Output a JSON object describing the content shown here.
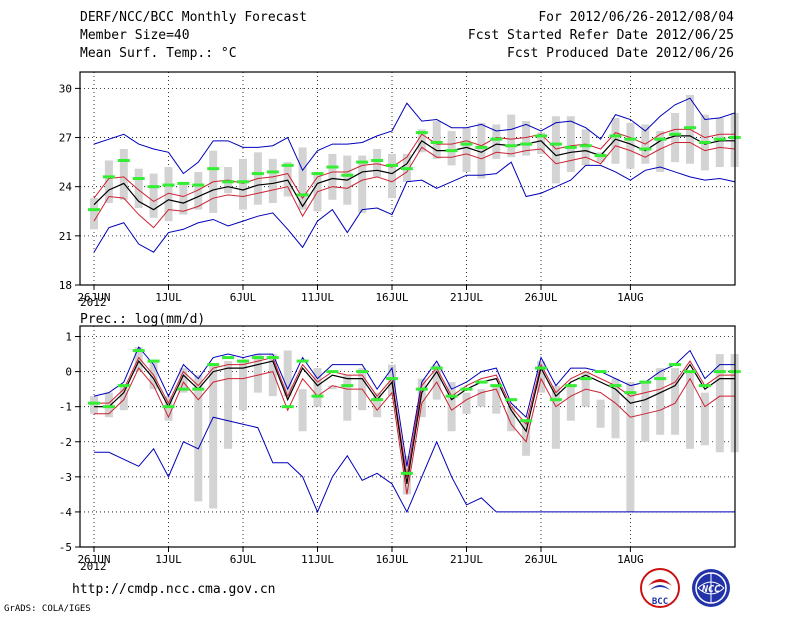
{
  "header": {
    "title": "DERF/NCC/BCC Monthly Forecast",
    "member_size": "Member Size=40",
    "variable1": "Mean Surf. Temp.: °C",
    "period": "For 2012/06/26-2012/08/04",
    "started": "Fcst Started Refer Date 2012/06/25",
    "produced": "Fcst Produced Date 2012/06/26"
  },
  "footer": {
    "url": "http://cmdp.ncc.cma.gov.cn",
    "credit": "GrADS: COLA/IGES",
    "logo1_text": "BCC",
    "logo2_text": "NCC"
  },
  "colors": {
    "spread": "#d3d3d3",
    "obs": "#33ee33",
    "mean": "#000000",
    "pm_sd": "#cc2233",
    "env": "#0000bb",
    "logo_red": "#cc1111",
    "logo_blue": "#2233aa"
  },
  "chart_data": [
    {
      "type": "line",
      "panel": "top",
      "title": "Mean Surf. Temp.: °C",
      "x_tick_labels": [
        "26JUN",
        "1JUL",
        "6JUL",
        "11JUL",
        "16JUL",
        "21JUL",
        "26JUL",
        "1AUG"
      ],
      "x_tick_day_index": [
        0,
        5,
        10,
        15,
        20,
        25,
        30,
        36
      ],
      "year_label": "2012",
      "ylim": [
        18,
        31
      ],
      "y_ticks": [
        18,
        21,
        24,
        27,
        30
      ],
      "series": [
        {
          "name": "box_top",
          "values": [
            23.3,
            25.6,
            26.3,
            25.1,
            24.8,
            25.2,
            24.2,
            24.9,
            26.2,
            25.2,
            25.7,
            26.1,
            25.7,
            25.5,
            26.4,
            24.9,
            26.0,
            25.9,
            25.9,
            26.3,
            26.0,
            26.0,
            27.5,
            28.0,
            27.4,
            27.6,
            27.9,
            27.8,
            28.4,
            28.0,
            27.3,
            28.3,
            28.3,
            27.5,
            26.1,
            28.2,
            27.9,
            27.8,
            27.4,
            28.5,
            29.6,
            28.4,
            28.2,
            28.5
          ]
        },
        {
          "name": "box_bottom",
          "values": [
            21.4,
            23.0,
            23.2,
            22.7,
            22.1,
            21.9,
            22.3,
            22.6,
            22.4,
            23.6,
            22.6,
            22.9,
            23.0,
            23.4,
            22.6,
            22.5,
            23.2,
            22.9,
            22.4,
            24.6,
            23.3,
            24.3,
            26.1,
            25.7,
            25.3,
            24.9,
            24.5,
            25.7,
            25.8,
            25.9,
            26.0,
            24.2,
            24.9,
            25.3,
            25.5,
            25.4,
            25.1,
            25.4,
            24.9,
            25.5,
            25.4,
            25.0,
            25.2,
            25.2
          ]
        },
        {
          "name": "observed",
          "values": [
            22.6,
            24.6,
            25.6,
            24.5,
            24.0,
            24.1,
            24.2,
            24.1,
            25.1,
            24.3,
            24.3,
            24.8,
            24.9,
            25.3,
            23.5,
            24.8,
            25.2,
            24.7,
            25.5,
            25.6,
            25.3,
            25.1,
            27.3,
            26.7,
            26.2,
            26.6,
            26.4,
            26.9,
            26.5,
            26.6,
            27.1,
            26.6,
            26.4,
            26.5,
            25.9,
            27.1,
            26.9,
            26.3,
            26.9,
            27.2,
            27.6,
            26.7,
            26.9,
            27.0
          ]
        },
        {
          "name": "ensemble_mean",
          "values": [
            22.9,
            23.8,
            24.2,
            23.1,
            22.6,
            23.2,
            23.0,
            23.4,
            23.8,
            24.0,
            23.8,
            24.1,
            24.2,
            24.4,
            22.8,
            24.2,
            24.5,
            24.4,
            24.9,
            25.0,
            24.8,
            25.4,
            26.8,
            26.2,
            26.2,
            26.4,
            26.1,
            26.6,
            26.5,
            26.6,
            26.8,
            25.9,
            26.1,
            26.2,
            25.9,
            26.9,
            26.6,
            26.2,
            26.8,
            27.1,
            27.1,
            26.6,
            26.8,
            26.8
          ]
        },
        {
          "name": "mean_plus_sd",
          "values": [
            23.3,
            24.5,
            24.6,
            23.8,
            23.1,
            23.6,
            23.4,
            23.8,
            24.3,
            24.4,
            24.2,
            24.5,
            24.6,
            24.8,
            23.3,
            24.6,
            24.9,
            24.9,
            25.3,
            25.4,
            25.2,
            25.8,
            27.2,
            26.6,
            26.6,
            26.8,
            26.5,
            27.0,
            26.9,
            27.0,
            27.2,
            26.3,
            26.5,
            26.6,
            26.3,
            27.3,
            27.0,
            26.6,
            27.2,
            27.5,
            27.5,
            27.0,
            27.2,
            27.2
          ]
        },
        {
          "name": "mean_minus_sd",
          "values": [
            21.9,
            23.4,
            23.3,
            22.3,
            21.5,
            22.6,
            22.5,
            22.8,
            23.3,
            23.5,
            23.4,
            23.6,
            23.8,
            24.0,
            22.2,
            23.7,
            24.0,
            23.9,
            24.4,
            24.6,
            24.3,
            24.9,
            26.4,
            25.8,
            25.8,
            26.0,
            25.7,
            26.1,
            26.0,
            26.2,
            26.3,
            25.4,
            25.6,
            25.8,
            25.4,
            26.5,
            26.2,
            25.8,
            26.3,
            26.7,
            26.7,
            26.2,
            26.4,
            26.3
          ]
        },
        {
          "name": "ensemble_max",
          "values": [
            26.6,
            26.9,
            27.2,
            26.6,
            26.3,
            26.1,
            24.8,
            25.5,
            26.8,
            26.8,
            26.4,
            26.4,
            26.5,
            27.0,
            25.0,
            26.2,
            26.6,
            26.6,
            26.7,
            27.1,
            27.4,
            29.1,
            28.0,
            28.1,
            27.6,
            27.6,
            27.8,
            27.4,
            27.5,
            27.8,
            27.4,
            27.9,
            28.0,
            27.6,
            26.9,
            28.4,
            28.1,
            27.4,
            28.3,
            29.0,
            29.4,
            28.1,
            28.2,
            28.5
          ]
        },
        {
          "name": "ensemble_min",
          "values": [
            20.0,
            21.5,
            21.8,
            20.5,
            20.0,
            21.2,
            21.4,
            21.8,
            22.0,
            21.6,
            21.9,
            22.2,
            22.4,
            21.4,
            20.3,
            21.9,
            22.6,
            21.2,
            22.6,
            22.7,
            22.3,
            24.3,
            24.4,
            23.9,
            24.3,
            24.7,
            24.7,
            24.8,
            25.5,
            23.4,
            23.6,
            24.0,
            24.4,
            25.3,
            25.3,
            24.9,
            24.4,
            25.0,
            25.2,
            24.9,
            24.6,
            24.4,
            24.5,
            24.3
          ]
        }
      ]
    },
    {
      "type": "line",
      "panel": "bottom",
      "title": "Prec.: log(mm/d)",
      "x_tick_labels": [
        "26JUN",
        "1JUL",
        "6JUL",
        "11JUL",
        "16JUL",
        "21JUL",
        "26JUL",
        "1AUG"
      ],
      "x_tick_day_index": [
        0,
        5,
        10,
        15,
        20,
        25,
        30,
        36
      ],
      "year_label": "2012",
      "ylim": [
        -5,
        1.3
      ],
      "y_ticks": [
        -5,
        -4,
        -3,
        -2,
        -1,
        0,
        1
      ],
      "series": [
        {
          "name": "box_top",
          "values": [
            -0.7,
            -0.6,
            -0.4,
            0.7,
            0.3,
            -0.7,
            0.1,
            -0.1,
            0.2,
            0.3,
            0.3,
            0.5,
            0.5,
            0.6,
            -0.5,
            0.1,
            -0.5,
            -0.1,
            0.1,
            -0.6,
            0.2,
            -2.4,
            -0.2,
            0.2,
            -0.3,
            -0.6,
            -0.5,
            -0.4,
            -1.0,
            -1.4,
            0.3,
            -0.4,
            -0.4,
            0.0,
            -0.8,
            -0.2,
            -0.3,
            -0.3,
            0.1,
            0.1,
            0.0,
            -0.6,
            0.5,
            0.5
          ]
        },
        {
          "name": "box_bottom",
          "values": [
            -1.2,
            -1.3,
            -1.1,
            0.0,
            -0.5,
            -1.4,
            -0.6,
            -3.7,
            -3.9,
            -2.2,
            -1.1,
            -0.6,
            -0.7,
            -0.7,
            -1.7,
            -1.0,
            -0.4,
            -1.4,
            -1.1,
            -1.3,
            -0.7,
            -3.5,
            -1.3,
            -0.8,
            -1.7,
            -1.2,
            -1.0,
            -1.2,
            -1.7,
            -2.4,
            -0.6,
            -2.2,
            -1.4,
            -1.0,
            -1.6,
            -1.9,
            -4.0,
            -2.0,
            -1.8,
            -1.8,
            -2.2,
            -2.1,
            -2.3,
            -2.3
          ]
        },
        {
          "name": "observed",
          "values": [
            -0.9,
            -1.0,
            -0.4,
            0.6,
            0.3,
            -1.0,
            -0.5,
            -0.5,
            0.2,
            0.4,
            0.3,
            0.4,
            0.4,
            -1.0,
            0.3,
            -0.7,
            0.0,
            -0.4,
            0.0,
            -0.8,
            -0.2,
            -2.9,
            -0.5,
            0.1,
            -0.7,
            -0.5,
            -0.3,
            -0.4,
            -0.8,
            -1.4,
            0.1,
            -0.8,
            -0.4,
            -0.2,
            0.0,
            -0.4,
            -0.6,
            -0.3,
            -0.2,
            0.2,
            0.0,
            -0.4,
            0.0,
            0.0
          ]
        },
        {
          "name": "ensemble_mean",
          "values": [
            -1.0,
            -1.0,
            -0.6,
            0.3,
            -0.2,
            -1.0,
            -0.1,
            -0.5,
            0.0,
            0.1,
            0.1,
            0.2,
            0.3,
            -0.8,
            0.1,
            -0.4,
            -0.1,
            -0.2,
            -0.2,
            -0.8,
            -0.3,
            -3.2,
            -0.6,
            0.0,
            -0.8,
            -0.5,
            -0.3,
            -0.2,
            -1.1,
            -1.7,
            0.1,
            -0.7,
            -0.3,
            -0.1,
            -0.3,
            -0.5,
            -0.9,
            -0.8,
            -0.6,
            -0.4,
            0.2,
            -0.5,
            -0.2,
            -0.2
          ]
        },
        {
          "name": "mean_plus_sd",
          "values": [
            -0.9,
            -0.9,
            -0.5,
            0.4,
            -0.1,
            -0.9,
            0.0,
            -0.4,
            0.1,
            0.2,
            0.2,
            0.3,
            0.4,
            -0.7,
            0.2,
            -0.3,
            0.0,
            -0.1,
            -0.1,
            -0.7,
            -0.2,
            -3.0,
            -0.4,
            0.1,
            -0.7,
            -0.4,
            -0.2,
            -0.1,
            -1.0,
            -1.5,
            0.2,
            -0.6,
            -0.2,
            0.0,
            -0.2,
            -0.4,
            -0.7,
            -0.6,
            -0.5,
            -0.3,
            0.3,
            -0.4,
            -0.1,
            -0.1
          ]
        },
        {
          "name": "mean_minus_sd",
          "values": [
            -1.2,
            -1.2,
            -0.8,
            0.1,
            -0.4,
            -1.3,
            -0.3,
            -0.8,
            -0.3,
            -0.2,
            -0.2,
            -0.1,
            0.0,
            -1.1,
            -0.2,
            -0.7,
            -0.4,
            -0.5,
            -0.5,
            -1.1,
            -0.6,
            -3.5,
            -0.9,
            -0.3,
            -1.1,
            -0.8,
            -0.6,
            -0.5,
            -1.5,
            -2.0,
            -0.2,
            -1.0,
            -0.7,
            -0.5,
            -0.6,
            -0.9,
            -1.3,
            -1.2,
            -1.1,
            -0.9,
            -0.2,
            -1.0,
            -0.7,
            -0.7
          ]
        },
        {
          "name": "ensemble_max",
          "values": [
            -0.7,
            -0.6,
            -0.3,
            0.7,
            0.2,
            -0.7,
            0.2,
            -0.2,
            0.4,
            0.5,
            0.4,
            0.5,
            0.5,
            -0.5,
            0.4,
            -0.2,
            0.2,
            0.2,
            0.2,
            -0.5,
            0.1,
            -2.7,
            -0.3,
            0.3,
            -0.5,
            -0.3,
            0.0,
            0.1,
            -0.9,
            -1.3,
            0.4,
            -0.4,
            0.1,
            0.1,
            0.0,
            -0.2,
            -0.4,
            -0.3,
            0.0,
            0.2,
            0.6,
            -0.2,
            0.2,
            0.2
          ]
        },
        {
          "name": "ensemble_min",
          "values": [
            -2.3,
            -2.3,
            -2.5,
            -2.7,
            -2.2,
            -3.0,
            -2.0,
            -2.2,
            -1.3,
            -1.4,
            -1.5,
            -1.6,
            -2.6,
            -2.6,
            -3.0,
            -4.0,
            -3.0,
            -2.4,
            -3.1,
            -2.9,
            -3.2,
            -4.0,
            -3.0,
            -2.0,
            -3.0,
            -3.8,
            -3.6,
            -4.0,
            -4.0,
            -4.0,
            -4.0,
            -4.0,
            -4.0,
            -4.0,
            -4.0,
            -4.0,
            -4.0,
            -4.0,
            -4.0,
            -4.0,
            -4.0,
            -4.0,
            -4.0,
            -4.0
          ]
        }
      ]
    }
  ]
}
